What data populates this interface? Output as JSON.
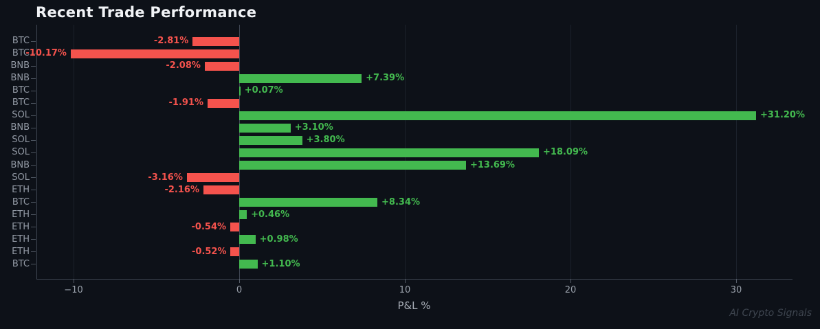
{
  "chart_data": {
    "type": "bar",
    "orientation": "horizontal",
    "title": "Recent Trade Performance",
    "xlabel": "P&L %",
    "watermark": "AI Crypto Signals",
    "legend": "none",
    "grid": "vertical gridlines at x ticks only",
    "xlim": [
      -12.2,
      33.4
    ],
    "categories": [
      "BTC",
      "BTC",
      "BNB",
      "BNB",
      "BTC",
      "BTC",
      "SOL",
      "BNB",
      "SOL",
      "SOL",
      "BNB",
      "SOL",
      "ETH",
      "BTC",
      "ETH",
      "ETH",
      "ETH",
      "ETH",
      "BTC"
    ],
    "values": [
      -2.81,
      -10.17,
      -2.08,
      7.39,
      0.07,
      -1.91,
      31.2,
      3.1,
      3.8,
      18.09,
      13.69,
      -3.16,
      -2.16,
      8.34,
      0.46,
      -0.54,
      0.98,
      -0.52,
      1.1
    ],
    "value_labels": [
      "-2.81%",
      "-10.17%",
      "-2.08%",
      "+7.39%",
      "+0.07%",
      "-1.91%",
      "+31.20%",
      "+3.10%",
      "+3.80%",
      "+18.09%",
      "+13.69%",
      "-3.16%",
      "-2.16%",
      "+8.34%",
      "+0.46%",
      "-0.54%",
      "+0.98%",
      "-0.52%",
      "+1.10%"
    ],
    "x_ticks": [
      {
        "v": -10,
        "label": "−10"
      },
      {
        "v": 0,
        "label": "0"
      },
      {
        "v": 10,
        "label": "10"
      },
      {
        "v": 20,
        "label": "20"
      },
      {
        "v": 30,
        "label": "30"
      }
    ],
    "colors": {
      "positive": "#43b94f",
      "negative": "#f5534d",
      "background": "#0d1118",
      "title": "#f1f3f6",
      "axis_label": "#a7adb6",
      "tick_label": "#9aa1ab",
      "category_label": "#949ba6",
      "spine": "#3f4652",
      "gridline": "#1b212b",
      "tick_mark": "#565d68",
      "watermark": "#3e454f"
    }
  }
}
